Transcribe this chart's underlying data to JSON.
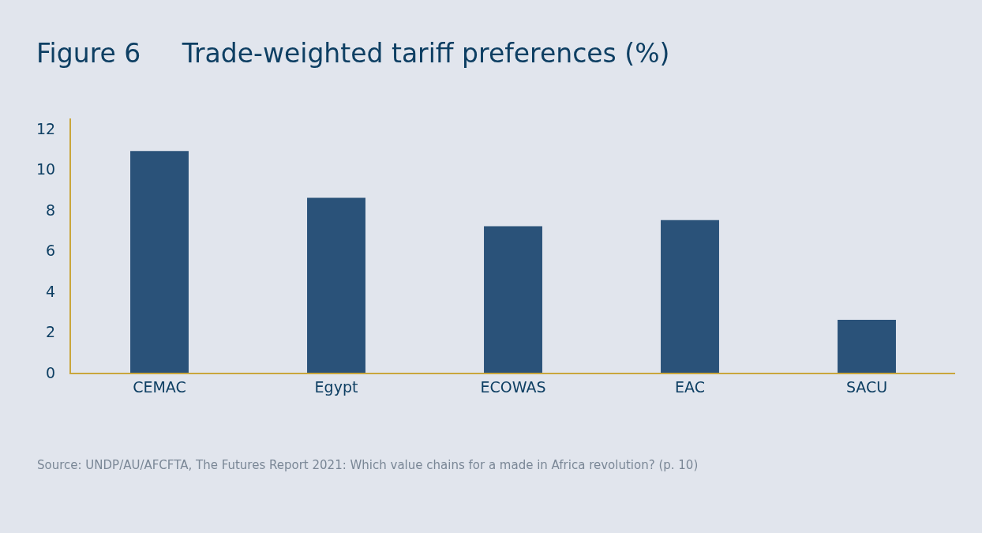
{
  "chart_data": {
    "type": "bar",
    "title": "Figure 6     Trade-weighted tariff preferences (%)",
    "categories": [
      "CEMAC",
      "Egypt",
      "ECOWAS",
      "EAC",
      "SACU"
    ],
    "values": [
      10.9,
      8.6,
      7.2,
      7.5,
      2.6
    ],
    "color": "#2a5279",
    "ylim": [
      0,
      12.5
    ],
    "yticks": [
      0,
      2,
      4,
      6,
      8,
      10,
      12
    ],
    "grid": false,
    "legend": false,
    "annotations": [
      "Source: UNDP/AU/AFCFTA, The Futures Report 2021: Which value chains for a made in Africa revolution? (p. 10)"
    ]
  }
}
